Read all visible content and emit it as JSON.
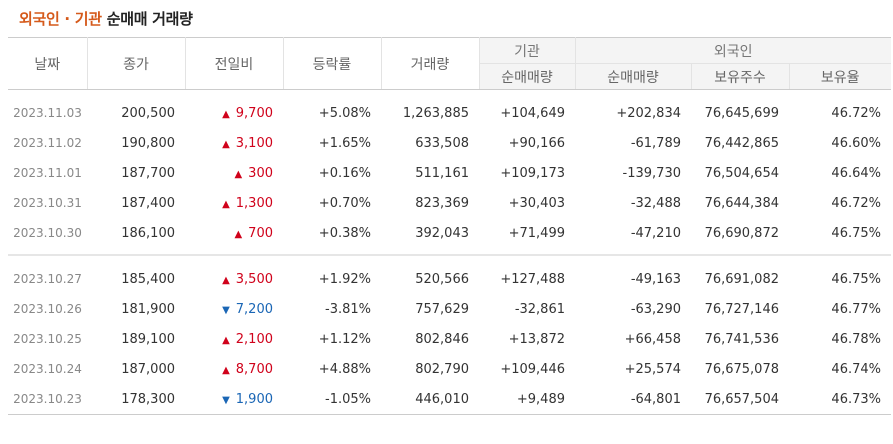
{
  "title": {
    "accent": "외국인 · 기관",
    "rest": "순매매 거래량"
  },
  "headers": {
    "date": "날짜",
    "close": "종가",
    "change": "전일비",
    "rate": "등락률",
    "volume": "거래량",
    "inst_group": "기관",
    "foreign_group": "외국인",
    "inst_net": "순매매량",
    "foreign_net": "순매매량",
    "holdings": "보유주수",
    "ratio": "보유율"
  },
  "colors": {
    "up": "#d0021b",
    "down": "#1a66b5",
    "accent": "#d55a1b"
  },
  "groups": [
    [
      {
        "date": "2023.11.03",
        "close": "200,500",
        "dir": "up",
        "change": "9,700",
        "rate": "+5.08%",
        "volume": "1,263,885",
        "inst": "+104,649",
        "foreign": "+202,834",
        "holdings": "76,645,699",
        "ratio": "46.72%"
      },
      {
        "date": "2023.11.02",
        "close": "190,800",
        "dir": "up",
        "change": "3,100",
        "rate": "+1.65%",
        "volume": "633,508",
        "inst": "+90,166",
        "foreign": "-61,789",
        "holdings": "76,442,865",
        "ratio": "46.60%"
      },
      {
        "date": "2023.11.01",
        "close": "187,700",
        "dir": "up",
        "change": "300",
        "rate": "+0.16%",
        "volume": "511,161",
        "inst": "+109,173",
        "foreign": "-139,730",
        "holdings": "76,504,654",
        "ratio": "46.64%"
      },
      {
        "date": "2023.10.31",
        "close": "187,400",
        "dir": "up",
        "change": "1,300",
        "rate": "+0.70%",
        "volume": "823,369",
        "inst": "+30,403",
        "foreign": "-32,488",
        "holdings": "76,644,384",
        "ratio": "46.72%"
      },
      {
        "date": "2023.10.30",
        "close": "186,100",
        "dir": "up",
        "change": "700",
        "rate": "+0.38%",
        "volume": "392,043",
        "inst": "+71,499",
        "foreign": "-47,210",
        "holdings": "76,690,872",
        "ratio": "46.75%"
      }
    ],
    [
      {
        "date": "2023.10.27",
        "close": "185,400",
        "dir": "up",
        "change": "3,500",
        "rate": "+1.92%",
        "volume": "520,566",
        "inst": "+127,488",
        "foreign": "-49,163",
        "holdings": "76,691,082",
        "ratio": "46.75%"
      },
      {
        "date": "2023.10.26",
        "close": "181,900",
        "dir": "down",
        "change": "7,200",
        "rate": "-3.81%",
        "volume": "757,629",
        "inst": "-32,861",
        "foreign": "-63,290",
        "holdings": "76,727,146",
        "ratio": "46.77%"
      },
      {
        "date": "2023.10.25",
        "close": "189,100",
        "dir": "up",
        "change": "2,100",
        "rate": "+1.12%",
        "volume": "802,846",
        "inst": "+13,872",
        "foreign": "+66,458",
        "holdings": "76,741,536",
        "ratio": "46.78%"
      },
      {
        "date": "2023.10.24",
        "close": "187,000",
        "dir": "up",
        "change": "8,700",
        "rate": "+4.88%",
        "volume": "802,790",
        "inst": "+109,446",
        "foreign": "+25,574",
        "holdings": "76,675,078",
        "ratio": "46.74%"
      },
      {
        "date": "2023.10.23",
        "close": "178,300",
        "dir": "down",
        "change": "1,900",
        "rate": "-1.05%",
        "volume": "446,010",
        "inst": "+9,489",
        "foreign": "-64,801",
        "holdings": "76,657,504",
        "ratio": "46.73%"
      }
    ]
  ]
}
